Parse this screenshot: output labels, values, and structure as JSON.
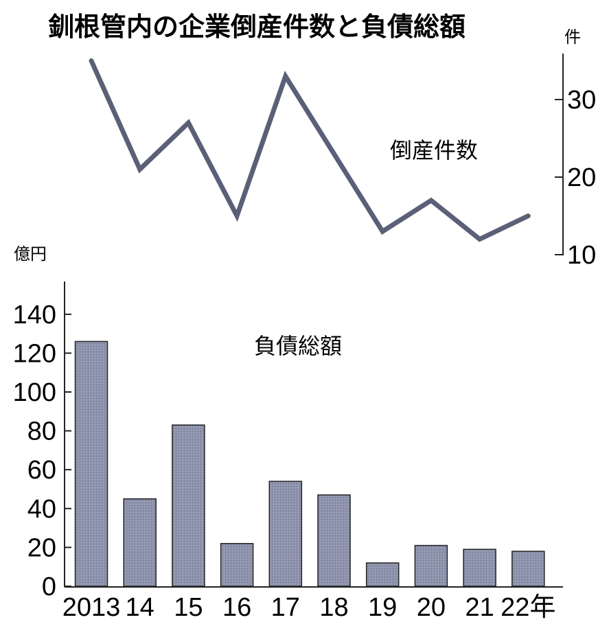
{
  "chart_data": [
    {
      "type": "line",
      "title": "釧根管内の企業倒産件数と負債総額",
      "unit": "件",
      "series_label": "倒産件数",
      "x": [
        "2013",
        "14",
        "15",
        "16",
        "17",
        "18",
        "19",
        "20",
        "21",
        "22年"
      ],
      "series": [
        {
          "name": "倒産件数",
          "values": [
            35,
            21,
            27,
            15,
            33,
            23,
            13,
            17,
            12,
            15
          ]
        }
      ],
      "yticks": [
        "10",
        "20",
        "30"
      ],
      "ylim": [
        10,
        36
      ],
      "color": "#5b6078"
    },
    {
      "type": "bar",
      "unit": "億円",
      "series_label": "負債総額",
      "categories": [
        "2013",
        "14",
        "15",
        "16",
        "17",
        "18",
        "19",
        "20",
        "21",
        "22年"
      ],
      "series": [
        {
          "name": "負債総額",
          "values": [
            126,
            45,
            83,
            22,
            54,
            47,
            12,
            21,
            19,
            18
          ]
        }
      ],
      "yticks": [
        "0",
        "20",
        "40",
        "60",
        "80",
        "100",
        "120",
        "140"
      ],
      "ylim": [
        0,
        156
      ],
      "color": "#8e94ad"
    }
  ]
}
